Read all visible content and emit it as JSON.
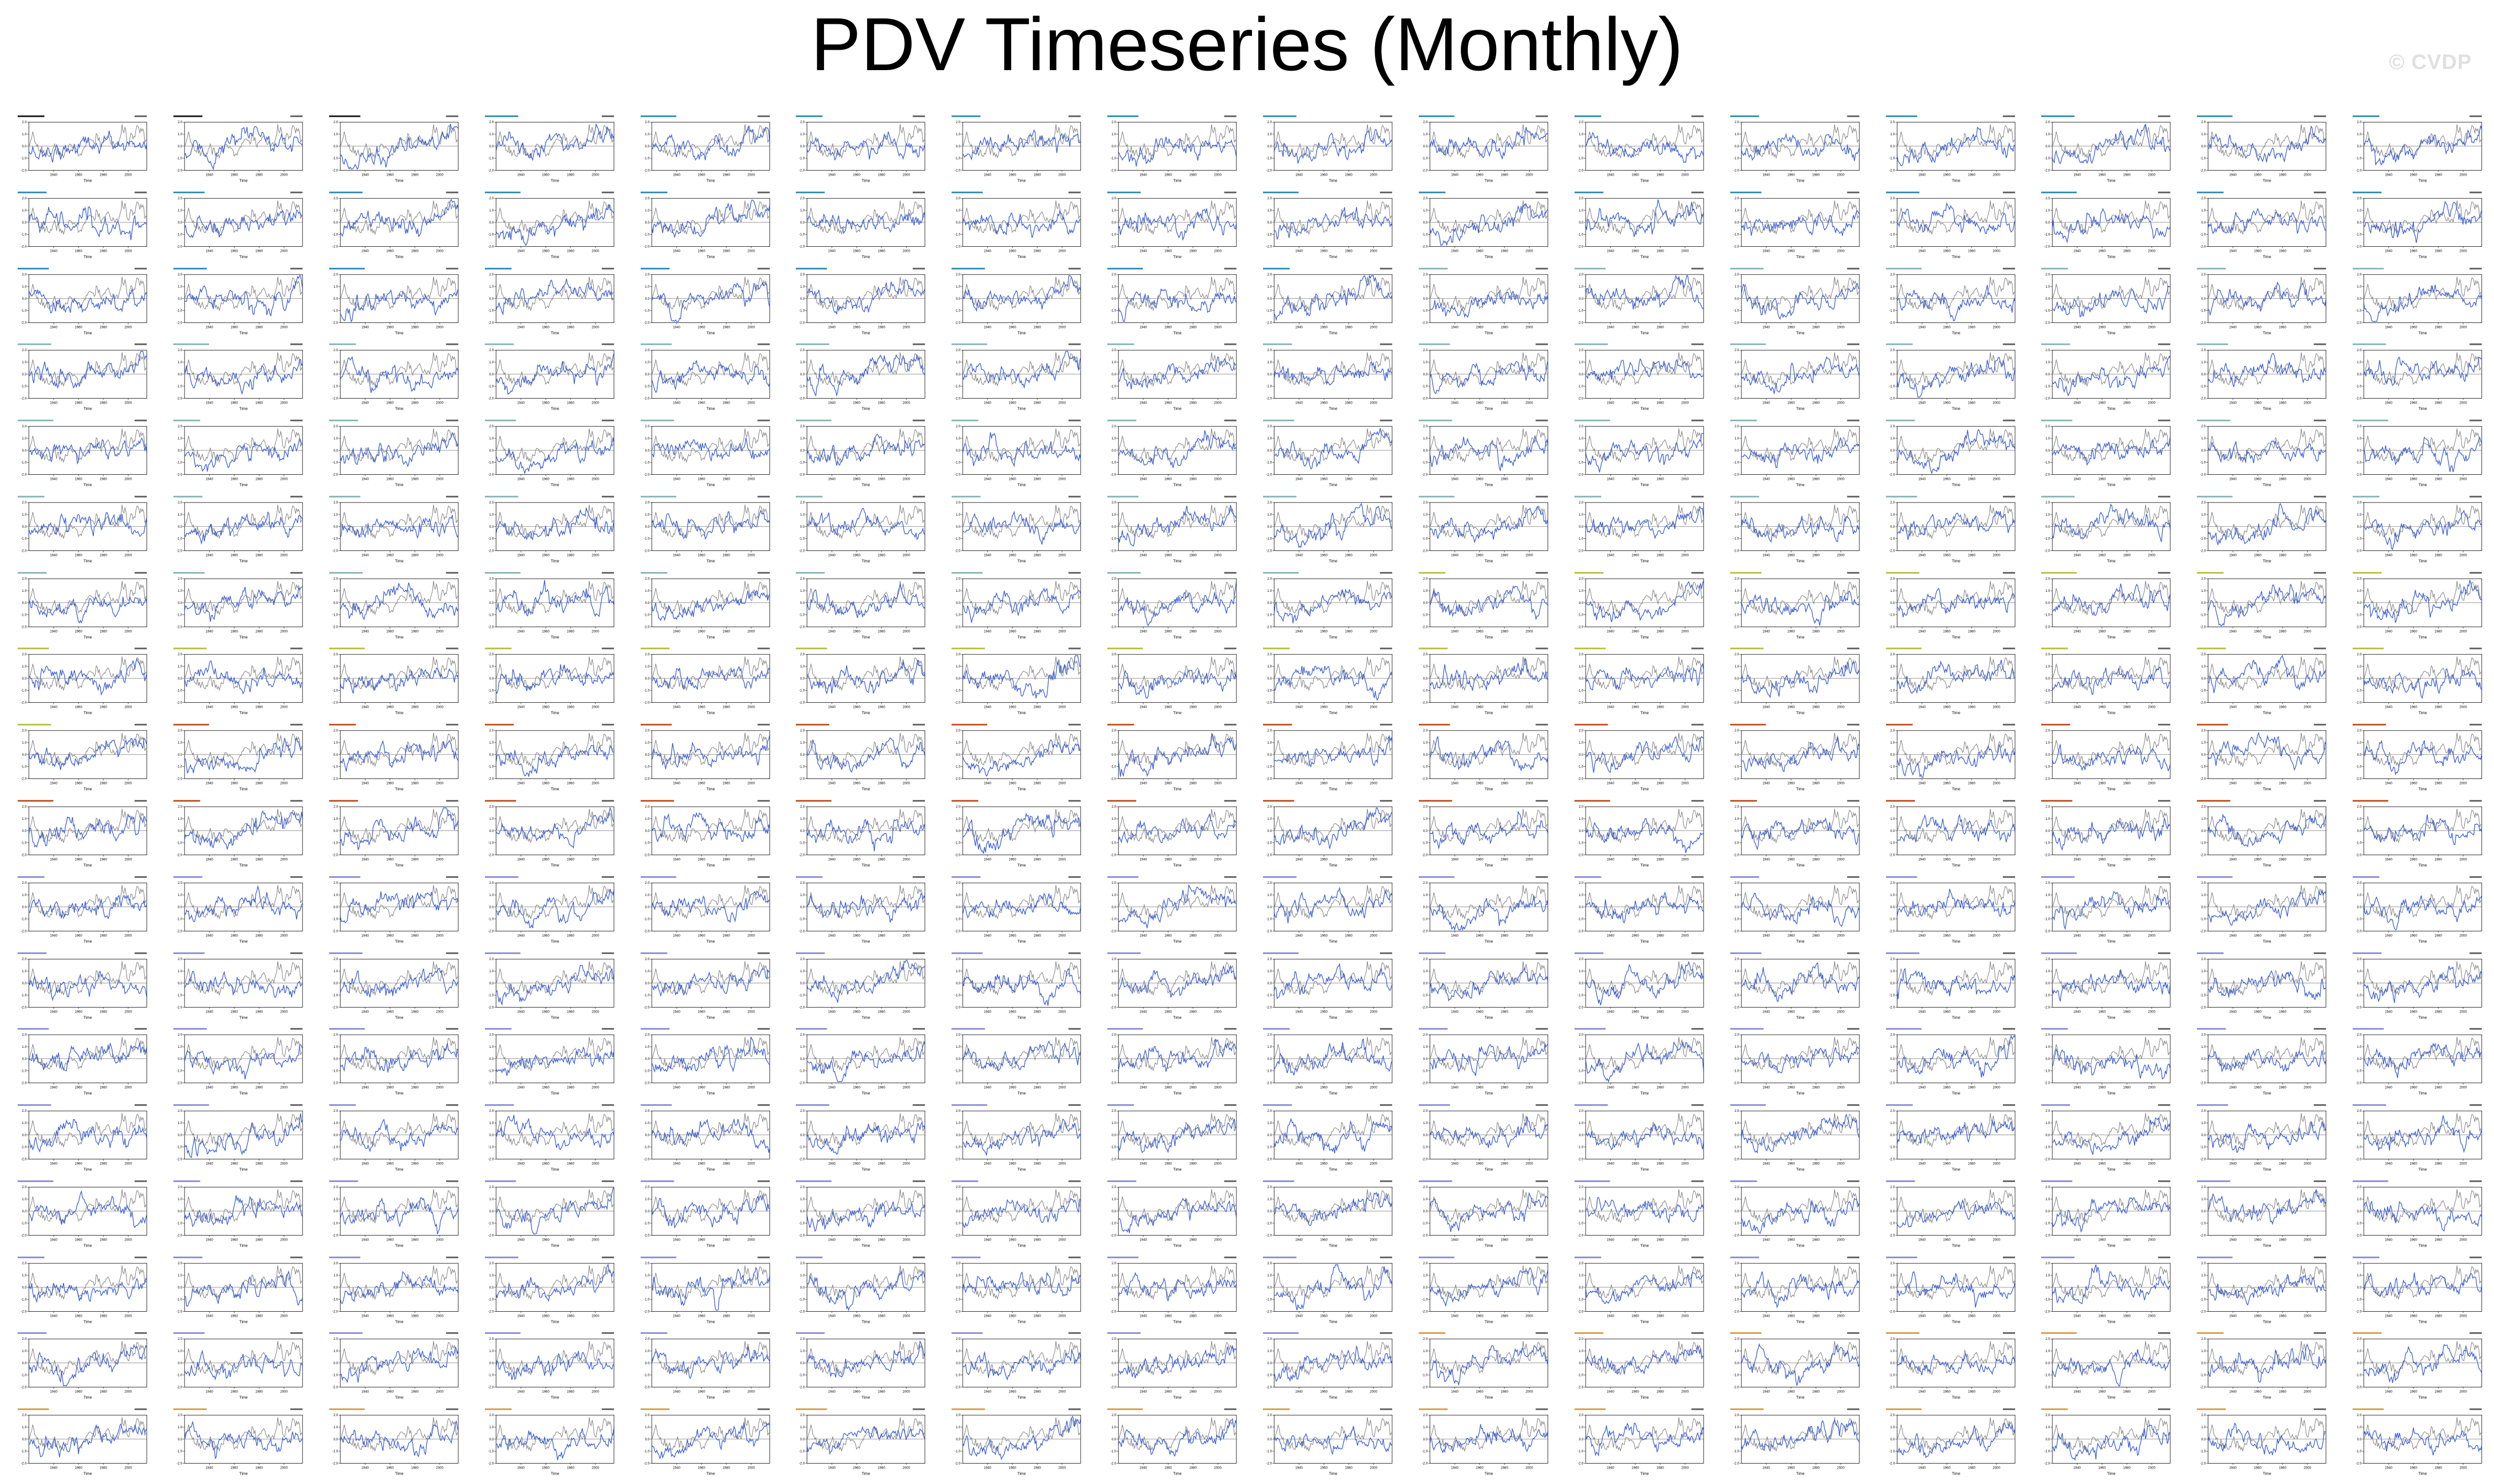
{
  "title": "PDV Timeseries (Monthly)",
  "watermark": "© CVDP",
  "colors": {
    "observed": "#8a8a8a",
    "model": "#3b5fd6",
    "title_obs": "#222222",
    "title_access": "#3a8fb5",
    "title_canesm": "#8bb8b8",
    "title_canesm_alt": "#b9c24a",
    "title_cesm": "#c0552b",
    "title_cesm_lens": "#8f8fd8",
    "title_mpi": "#d9a04a"
  },
  "chart_data": {
    "type": "line",
    "rows": 18,
    "cols": 16,
    "panel_count": 288,
    "xlabel": "Time",
    "xlim": [
      1920,
      2015
    ],
    "x_ticks": [
      1940,
      1960,
      1980,
      2000
    ],
    "ylim": [
      -2,
      2
    ],
    "y_ticks": [
      -2,
      -1,
      0,
      1,
      2
    ],
    "series": [
      {
        "name": "Observations",
        "color": "#8a8a8a"
      },
      {
        "name": "Model",
        "color": "#3b5fd6"
      }
    ],
    "panel_groups": [
      {
        "from": 0,
        "to": 2,
        "title_color": "#222222",
        "titles": [
          "ERSSTv5",
          "ERSSTv5_1",
          "HadISST1"
        ]
      },
      {
        "from": 3,
        "to": 40,
        "title_color": "#3a8fb5",
        "title_prefix": "ACCESS-ESM1-5 r#i1p1f1"
      },
      {
        "from": 41,
        "to": 104,
        "title_color": "#8bb8b8",
        "title_prefix": "CanESM5 r#i1p1f1"
      },
      {
        "from": 105,
        "to": 128,
        "title_color": "#b9c24a",
        "title_prefix": "CanESM5 r#i1p2f1"
      },
      {
        "from": 129,
        "to": 159,
        "title_color": "#c0552b",
        "title_prefix": "CESM1 r#i1p1"
      },
      {
        "from": 160,
        "to": 264,
        "title_color": "#8f8fd8",
        "title_prefix": "CESM2 r#i1p1f1"
      },
      {
        "from": 265,
        "to": 287,
        "title_color": "#d9a04a",
        "title_prefix": "MPI-ESM1-2-LR r#i1p1f1"
      }
    ],
    "panel_note": "Each of the 288 small panels shows a monthly PDV index timeseries (blue) overlaid on the observed index (gray), 1920–2015; values are illegible at this scale."
  }
}
